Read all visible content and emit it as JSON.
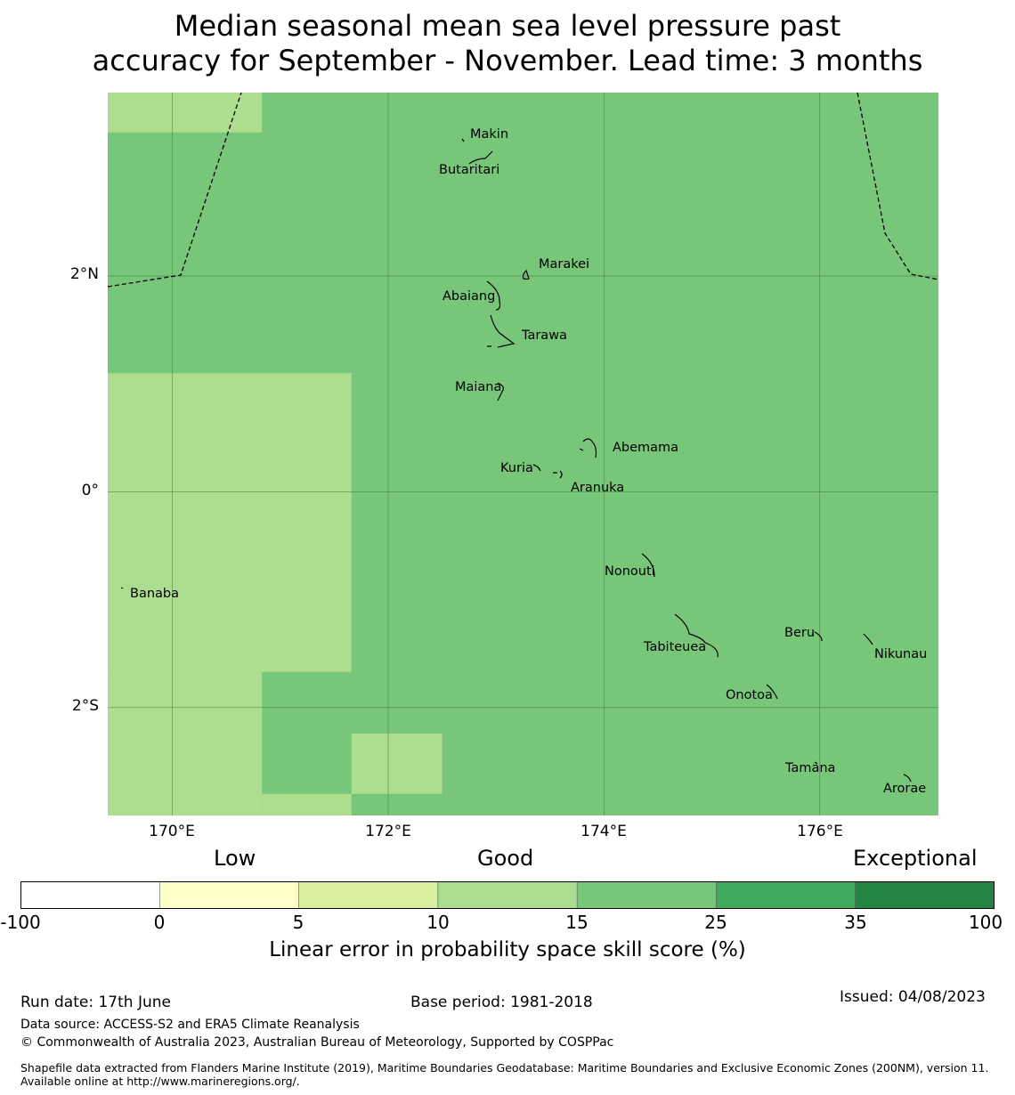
{
  "title": {
    "line1": "Median seasonal mean sea level pressure past",
    "line2": "accuracy for September - November. Lead time: 3 months"
  },
  "map": {
    "lon_range": [
      169.4,
      177.1
    ],
    "lat_range": [
      -3.0,
      3.7
    ],
    "lat_ticks": [
      {
        "value": 2,
        "label": "2°N"
      },
      {
        "value": 0,
        "label": "0°"
      },
      {
        "value": -2,
        "label": "2°S"
      }
    ],
    "lon_ticks": [
      {
        "value": 170,
        "label": "170°E"
      },
      {
        "value": 172,
        "label": "172°E"
      },
      {
        "value": 174,
        "label": "174°E"
      },
      {
        "value": 176,
        "label": "176°E"
      }
    ],
    "background_category": "15-25",
    "skill_cells": [
      {
        "category": "10-15",
        "lon": [
          169.4,
          170.83
        ],
        "lat": [
          3.33,
          3.7
        ]
      },
      {
        "category": "10-15",
        "lon": [
          169.4,
          171.66
        ],
        "lat": [
          -1.67,
          1.1
        ]
      },
      {
        "category": "10-15",
        "lon": [
          169.4,
          170.83
        ],
        "lat": [
          -3.0,
          -1.67
        ]
      },
      {
        "category": "10-15",
        "lon": [
          170.83,
          171.66
        ],
        "lat": [
          -3.0,
          -2.8
        ]
      },
      {
        "category": "10-15",
        "lon": [
          171.66,
          172.5
        ],
        "lat": [
          -2.8,
          -2.24
        ]
      }
    ],
    "islands": [
      {
        "name": "Makin",
        "lon": 173.0,
        "lat": 3.35
      },
      {
        "name": "Butaritari",
        "lon": 172.8,
        "lat": 3.05
      },
      {
        "name": "Marakei",
        "lon": 173.3,
        "lat": 2.0
      },
      {
        "name": "Abaiang",
        "lon": 172.95,
        "lat": 1.85
      },
      {
        "name": "Tarawa",
        "lon": 173.1,
        "lat": 1.4
      },
      {
        "name": "Maiana",
        "lon": 173.0,
        "lat": 0.9
      },
      {
        "name": "Abemama",
        "lon": 173.85,
        "lat": 0.4
      },
      {
        "name": "Kuria",
        "lon": 173.4,
        "lat": 0.22
      },
      {
        "name": "Aranuka",
        "lon": 173.6,
        "lat": 0.15
      },
      {
        "name": "Banaba",
        "lon": 169.53,
        "lat": -0.88
      },
      {
        "name": "Nonouti",
        "lon": 174.4,
        "lat": -0.65
      },
      {
        "name": "Tabiteuea",
        "lon": 174.8,
        "lat": -1.3
      },
      {
        "name": "Beru",
        "lon": 176.0,
        "lat": -1.35
      },
      {
        "name": "Nikunau",
        "lon": 176.45,
        "lat": -1.35
      },
      {
        "name": "Onotoa",
        "lon": 175.55,
        "lat": -1.85
      },
      {
        "name": "Tamana",
        "lon": 175.98,
        "lat": -2.5
      },
      {
        "name": "Arorae",
        "lon": 176.8,
        "lat": -2.65
      }
    ]
  },
  "legend": {
    "categories": [
      "Low",
      "Good",
      "Exceptional"
    ],
    "bins": [
      {
        "from": -100,
        "to": 0,
        "color": "#ffffff"
      },
      {
        "from": 0,
        "to": 5,
        "color": "#ffffcc"
      },
      {
        "from": 5,
        "to": 10,
        "color": "#d9f0a3"
      },
      {
        "from": 10,
        "to": 15,
        "color": "#addd8e"
      },
      {
        "from": 15,
        "to": 25,
        "color": "#78c679"
      },
      {
        "from": 25,
        "to": 35,
        "color": "#41ab5d"
      },
      {
        "from": 35,
        "to": 100,
        "color": "#238443"
      }
    ],
    "ticks": [
      "-100",
      "0",
      "5",
      "10",
      "15",
      "25",
      "35",
      "100"
    ],
    "title": "Linear error in probability space skill score (%)"
  },
  "footer": {
    "run_date": "Run date: 17th June",
    "base_period": "Base period: 1981-2018",
    "issued": "Issued: 04/08/2023",
    "data_source": "Data source: ACCESS-S2 and ERA5 Climate Reanalysis",
    "copyright": "© Commonwealth of Australia 2023, Australian Bureau of Meteorology, Supported by COSPPac",
    "shapefile": "Shapefile data extracted from Flanders Marine Institute (2019), Maritime Boundaries Geodatabase: Maritime Boundaries and Exclusive Economic Zones (200NM), version 11. Available online at http://www.marineregions.org/."
  }
}
